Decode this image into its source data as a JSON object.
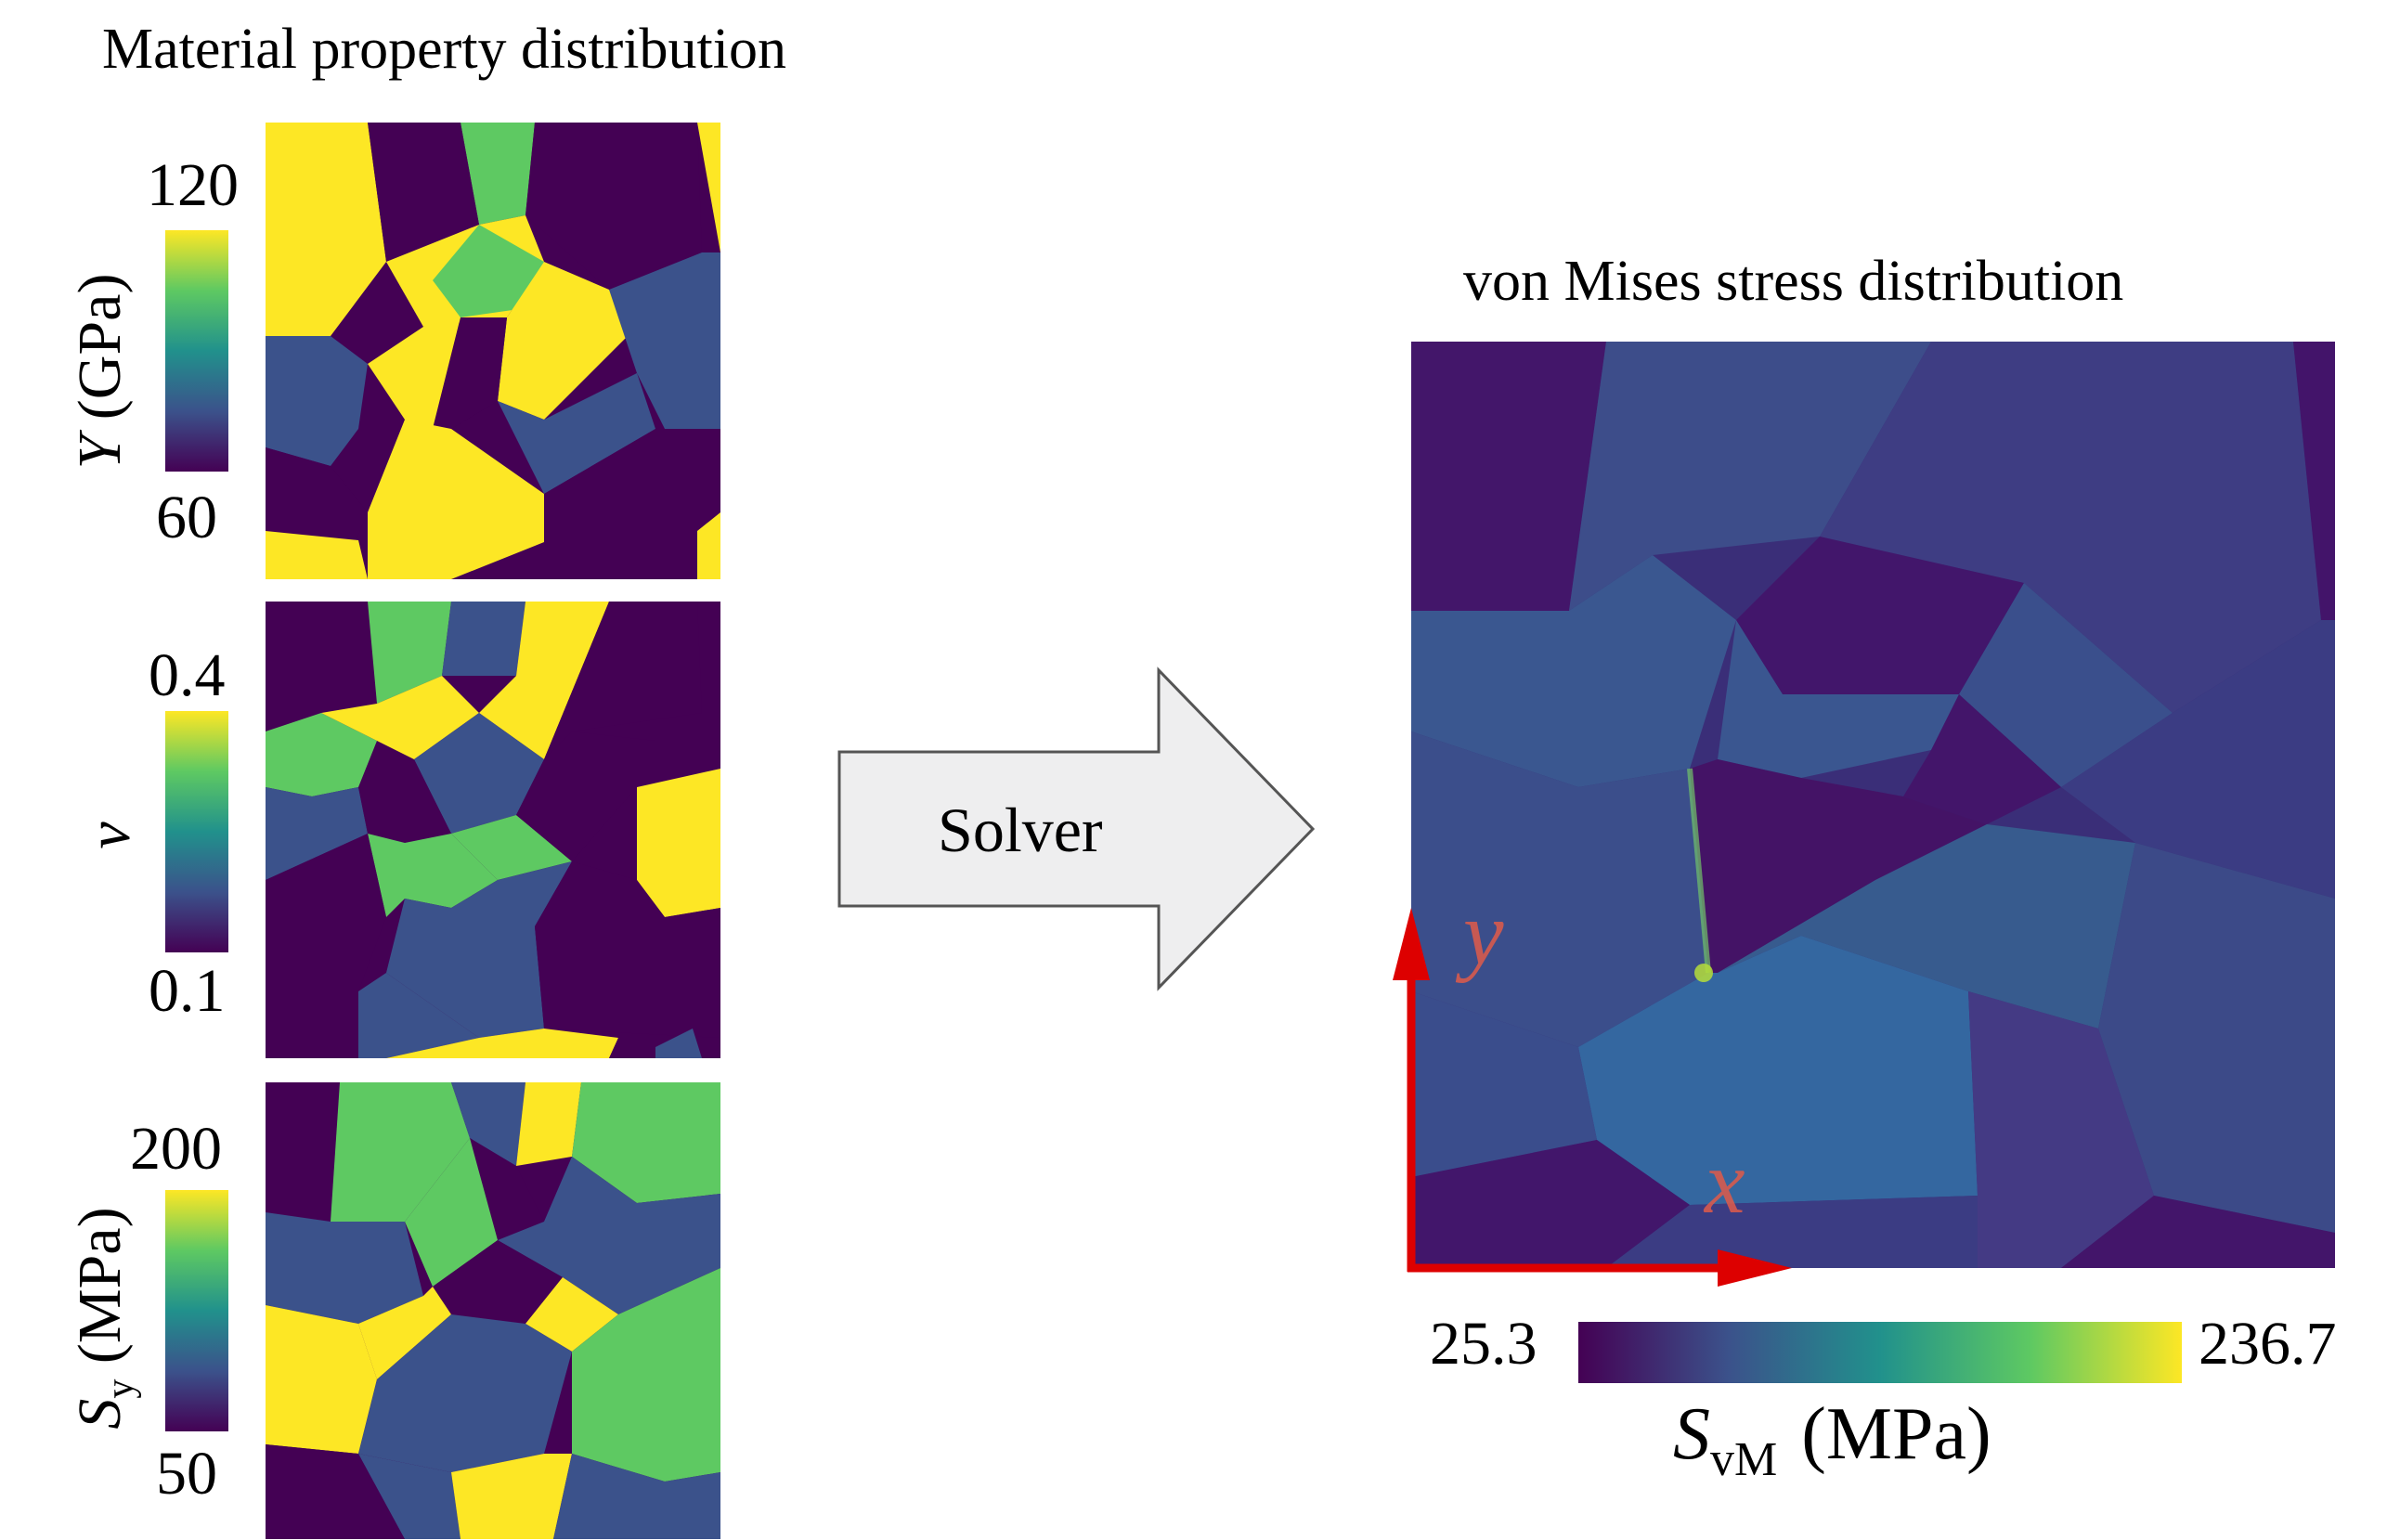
{
  "left_panel": {
    "title": "Material property distribution",
    "maps": [
      {
        "label_symbol": "Y",
        "label_unit": "(GPa)",
        "max": "120",
        "min": "60"
      },
      {
        "label_symbol": "ν",
        "label_unit": "",
        "max": "0.4",
        "min": "0.1"
      },
      {
        "label_symbol": "S",
        "label_sub": "y",
        "label_unit": "(MPa)",
        "max": "200",
        "min": "50"
      }
    ]
  },
  "arrow": {
    "label": "Solver"
  },
  "right_panel": {
    "title": "von Mises stress distribution",
    "axis_x": "x",
    "axis_y": "y",
    "colorbar_min": "25.3",
    "colorbar_max": "236.7",
    "colorbar_symbol": "S",
    "colorbar_sub": "vM",
    "colorbar_unit": "(MPa)"
  },
  "colors": {
    "viridis_dark": "#440154",
    "viridis_blue": "#3b528b",
    "viridis_teal": "#21918c",
    "viridis_green": "#5ec962",
    "viridis_yellow": "#fde725",
    "axis_arrow": "#dd0000"
  }
}
